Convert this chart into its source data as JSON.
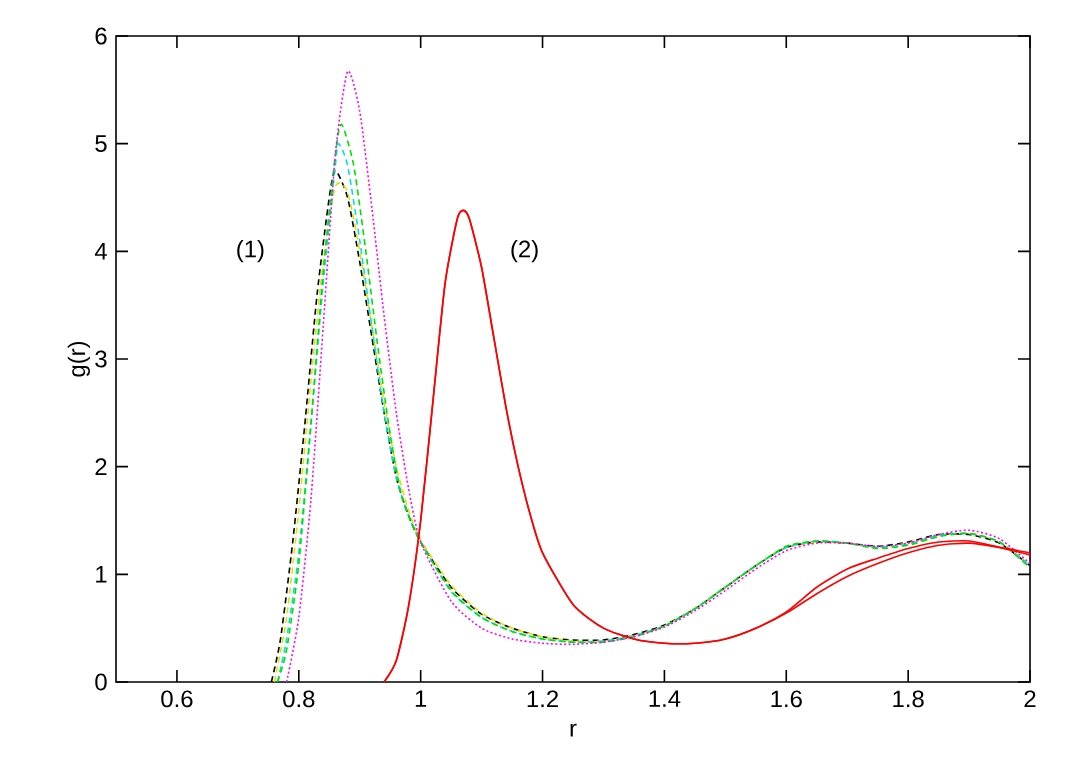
{
  "chart_data": {
    "type": "line",
    "xlabel": "r",
    "ylabel": "g(r)",
    "xlim": [
      0.5,
      2
    ],
    "ylim": [
      0,
      6
    ],
    "xticks": [
      0.6,
      0.8,
      1,
      1.2,
      1.4,
      1.6,
      1.8,
      2
    ],
    "yticks": [
      0,
      1,
      2,
      3,
      4,
      5,
      6
    ],
    "grid": false,
    "marker": "none",
    "annotations": [
      "(1)",
      "(2)"
    ],
    "series": [
      {
        "color": "#000000",
        "line_style": "dashed",
        "x": [
          0.755,
          0.77,
          0.79,
          0.81,
          0.83,
          0.85,
          0.86,
          0.88,
          0.9,
          0.92,
          0.94,
          0.96,
          0.98,
          1.0,
          1.05,
          1.1,
          1.15,
          1.2,
          1.25,
          1.3,
          1.35,
          1.4,
          1.45,
          1.5,
          1.55,
          1.6,
          1.65,
          1.7,
          1.75,
          1.8,
          1.85,
          1.9,
          1.95,
          2.0
        ],
        "values": [
          0,
          0.4,
          1.3,
          2.4,
          3.6,
          4.5,
          4.75,
          4.5,
          3.9,
          3.2,
          2.5,
          1.9,
          1.55,
          1.3,
          0.88,
          0.63,
          0.5,
          0.42,
          0.39,
          0.39,
          0.44,
          0.53,
          0.68,
          0.88,
          1.08,
          1.25,
          1.3,
          1.29,
          1.26,
          1.3,
          1.37,
          1.37,
          1.29,
          1.08
        ]
      },
      {
        "color": "#e0e000",
        "line_style": "dashed",
        "x": [
          0.76,
          0.78,
          0.8,
          0.82,
          0.84,
          0.86,
          0.88,
          0.9,
          0.92,
          0.94,
          0.96,
          0.98,
          1.0,
          1.05,
          1.1,
          1.15,
          1.2,
          1.25,
          1.3,
          1.35,
          1.4,
          1.45,
          1.5,
          1.55,
          1.6,
          1.65,
          1.7,
          1.75,
          1.8,
          1.85,
          1.9,
          1.95,
          2.0
        ],
        "values": [
          0,
          0.6,
          1.6,
          2.8,
          3.9,
          4.6,
          4.55,
          4.0,
          3.3,
          2.6,
          2.0,
          1.6,
          1.32,
          0.9,
          0.64,
          0.5,
          0.42,
          0.38,
          0.38,
          0.43,
          0.52,
          0.68,
          0.88,
          1.08,
          1.25,
          1.3,
          1.29,
          1.25,
          1.29,
          1.36,
          1.38,
          1.3,
          1.08
        ]
      },
      {
        "color": "#00e0e0",
        "line_style": "dashed",
        "x": [
          0.765,
          0.78,
          0.8,
          0.82,
          0.84,
          0.86,
          0.865,
          0.88,
          0.9,
          0.92,
          0.94,
          0.96,
          0.98,
          1.0,
          1.05,
          1.1,
          1.15,
          1.2,
          1.25,
          1.3,
          1.35,
          1.4,
          1.45,
          1.5,
          1.55,
          1.6,
          1.65,
          1.7,
          1.75,
          1.8,
          1.85,
          1.9,
          1.95,
          2.0
        ],
        "values": [
          0,
          0.4,
          1.2,
          2.4,
          3.7,
          4.8,
          5.0,
          4.8,
          4.1,
          3.3,
          2.5,
          1.9,
          1.55,
          1.3,
          0.84,
          0.6,
          0.47,
          0.4,
          0.37,
          0.38,
          0.43,
          0.52,
          0.68,
          0.88,
          1.08,
          1.25,
          1.31,
          1.29,
          1.25,
          1.28,
          1.36,
          1.38,
          1.3,
          1.08
        ]
      },
      {
        "color": "#00e000",
        "line_style": "dashed",
        "x": [
          0.765,
          0.78,
          0.8,
          0.82,
          0.84,
          0.86,
          0.87,
          0.89,
          0.91,
          0.93,
          0.95,
          0.97,
          1.0,
          1.05,
          1.1,
          1.15,
          1.2,
          1.25,
          1.3,
          1.35,
          1.4,
          1.45,
          1.5,
          1.55,
          1.6,
          1.65,
          1.7,
          1.75,
          1.8,
          1.85,
          1.9,
          1.95,
          2.0
        ],
        "values": [
          0,
          0.3,
          1.1,
          2.4,
          3.8,
          4.9,
          5.18,
          4.8,
          4.0,
          3.1,
          2.3,
          1.7,
          1.3,
          0.85,
          0.6,
          0.47,
          0.4,
          0.37,
          0.37,
          0.42,
          0.52,
          0.68,
          0.88,
          1.08,
          1.26,
          1.31,
          1.29,
          1.24,
          1.27,
          1.35,
          1.38,
          1.3,
          1.06
        ]
      },
      {
        "color": "#ff00ff",
        "line_style": "dotted",
        "x": [
          0.78,
          0.8,
          0.82,
          0.84,
          0.86,
          0.88,
          0.9,
          0.92,
          0.94,
          0.96,
          0.98,
          1.0,
          1.05,
          1.1,
          1.15,
          1.2,
          1.25,
          1.3,
          1.35,
          1.4,
          1.45,
          1.5,
          1.55,
          1.6,
          1.65,
          1.7,
          1.75,
          1.8,
          1.85,
          1.9,
          1.95,
          2.0
        ],
        "values": [
          0,
          0.6,
          1.7,
          3.3,
          4.9,
          5.67,
          5.3,
          4.4,
          3.4,
          2.5,
          1.8,
          1.3,
          0.75,
          0.5,
          0.4,
          0.36,
          0.35,
          0.37,
          0.42,
          0.51,
          0.66,
          0.85,
          1.05,
          1.22,
          1.29,
          1.29,
          1.26,
          1.29,
          1.37,
          1.41,
          1.33,
          1.1
        ]
      },
      {
        "color": "#ff0000",
        "line_style": "solid",
        "x": [
          0.94,
          0.96,
          0.98,
          1.0,
          1.02,
          1.04,
          1.06,
          1.07,
          1.08,
          1.1,
          1.12,
          1.14,
          1.16,
          1.18,
          1.2,
          1.25,
          1.3,
          1.35,
          1.4,
          1.45,
          1.5,
          1.55,
          1.6,
          1.65,
          1.7,
          1.75,
          1.8,
          1.85,
          1.9,
          1.95,
          2.0
        ],
        "values": [
          0,
          0.2,
          0.7,
          1.5,
          2.6,
          3.7,
          4.3,
          4.38,
          4.3,
          3.85,
          3.2,
          2.55,
          2.0,
          1.55,
          1.2,
          0.72,
          0.5,
          0.4,
          0.36,
          0.36,
          0.4,
          0.5,
          0.64,
          0.82,
          0.98,
          1.1,
          1.2,
          1.27,
          1.29,
          1.25,
          1.2
        ]
      },
      {
        "color": "#ff0000",
        "line_style": "solid",
        "x": [
          0.94,
          0.96,
          0.98,
          1.0,
          1.02,
          1.04,
          1.06,
          1.07,
          1.08,
          1.1,
          1.12,
          1.14,
          1.16,
          1.18,
          1.2,
          1.25,
          1.3,
          1.35,
          1.4,
          1.45,
          1.5,
          1.55,
          1.6,
          1.65,
          1.7,
          1.75,
          1.8,
          1.85,
          1.9,
          1.95,
          2.0
        ],
        "values": [
          0,
          0.2,
          0.7,
          1.5,
          2.6,
          3.7,
          4.3,
          4.38,
          4.3,
          3.85,
          3.2,
          2.55,
          2.0,
          1.55,
          1.2,
          0.72,
          0.5,
          0.4,
          0.36,
          0.36,
          0.4,
          0.5,
          0.65,
          0.88,
          1.05,
          1.15,
          1.24,
          1.3,
          1.31,
          1.25,
          1.18
        ]
      }
    ]
  }
}
